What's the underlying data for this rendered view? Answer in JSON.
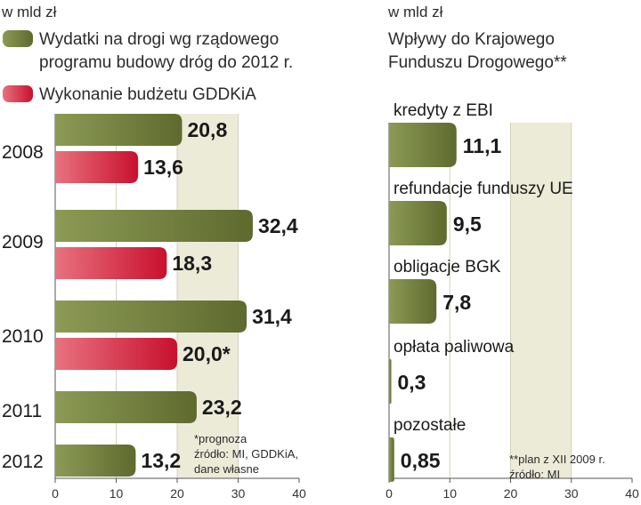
{
  "chart_data": [
    {
      "type": "bar",
      "orientation": "horizontal",
      "unit_label": "w mld zł",
      "categories": [
        "2008",
        "2009",
        "2010",
        "2011",
        "2012"
      ],
      "series": [
        {
          "name": "Wydatki na drogi wg rządowego programu budowy dróg do 2012 r.",
          "legend_lines": [
            "Wydatki na drogi wg rządowego",
            "programu budowy dróg do 2012 r."
          ],
          "color": "#5e6a2e",
          "color_light": "#8c9a55",
          "values": [
            20.8,
            32.4,
            31.4,
            23.2,
            13.2
          ],
          "labels": [
            "20,8",
            "32,4",
            "31,4",
            "23,2",
            "13,2"
          ]
        },
        {
          "name": "Wykonanie budżetu GDDKiA",
          "legend_lines": [
            "Wykonanie budżetu GDDKiA"
          ],
          "color": "#c8102e",
          "color_light": "#e8727f",
          "values": [
            13.6,
            18.3,
            20.0,
            null,
            null
          ],
          "labels": [
            "13,6",
            "18,3",
            "20,0*",
            "",
            ""
          ]
        }
      ],
      "xlim": [
        0,
        40
      ],
      "xticks": [
        0,
        10,
        20,
        30,
        40
      ],
      "notes": [
        "*prognoza",
        "źródło: MI, GDDKiA,",
        "dane własne"
      ]
    },
    {
      "type": "bar",
      "orientation": "horizontal",
      "unit_label": "w mld zł",
      "title_lines": [
        "Wpływy do Krajowego",
        "Funduszu Drogowego**"
      ],
      "categories": [
        "kredyty z EBI",
        "refundacje funduszy UE",
        "obligacje BGK",
        "opłata paliwowa",
        "pozostałe"
      ],
      "values": [
        11.1,
        9.5,
        7.8,
        0.3,
        0.85
      ],
      "labels": [
        "11,1",
        "9,5",
        "7,8",
        "0,3",
        "0,85"
      ],
      "color": "#5e6a2e",
      "color_light": "#8c9a55",
      "xlim": [
        0,
        40
      ],
      "xticks": [
        0,
        10,
        20,
        30,
        40
      ],
      "notes": [
        "**plan z XII 2009 r.",
        "źródło: MI"
      ]
    }
  ]
}
